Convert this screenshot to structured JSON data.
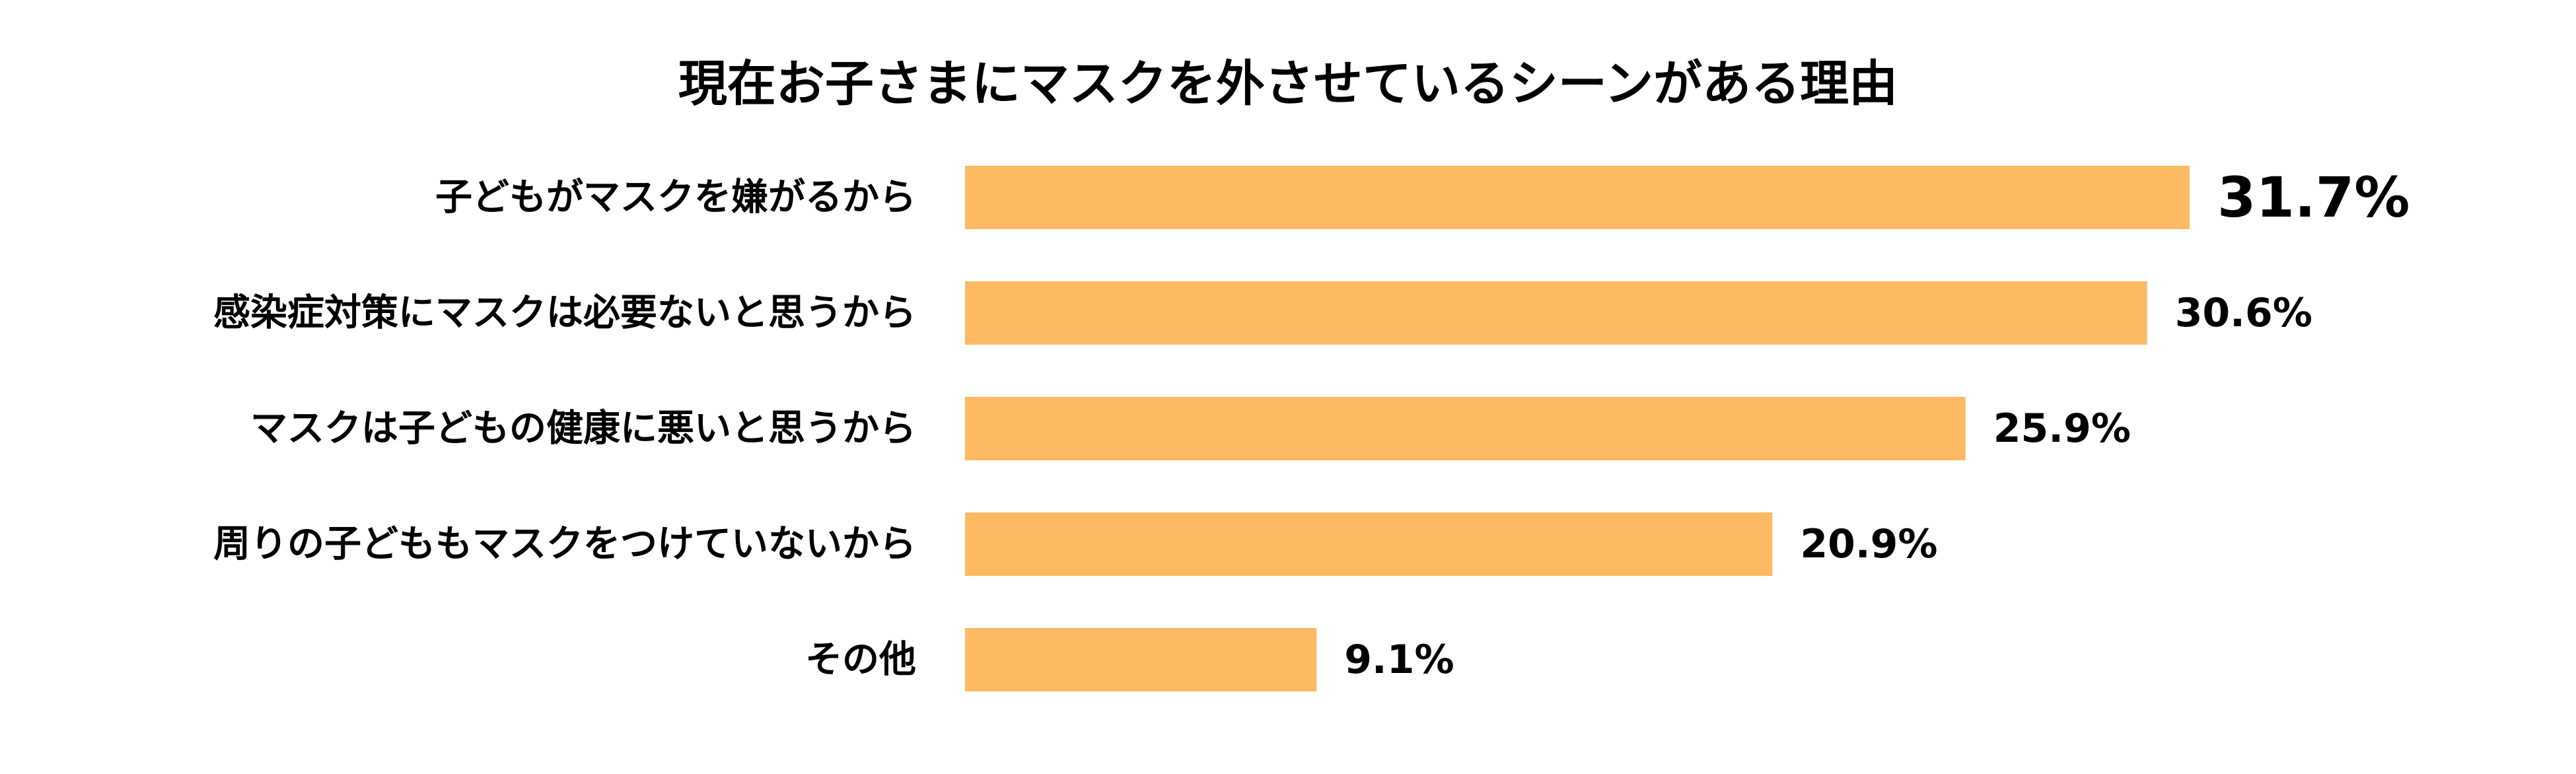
{
  "chart_data": {
    "type": "bar",
    "orientation": "horizontal",
    "title": "現在お子さまにマスクを外させているシーンがある理由",
    "categories": [
      "子どもがマスクを嫌がるから",
      "感染症対策にマスクは必要ないと思うから",
      "マスクは子どもの健康に悪いと思うから",
      "周りの子どももマスクをつけていないから",
      "その他"
    ],
    "values": [
      31.7,
      30.6,
      25.9,
      20.9,
      9.1
    ],
    "value_labels": [
      "31.7%",
      "30.6%",
      "25.9%",
      "20.9%",
      "9.1%"
    ],
    "unit": "%",
    "xlim": [
      0,
      31.7
    ],
    "grid": false,
    "legend": "none",
    "colors": {
      "bar": "#FDBA63",
      "text": "#000000",
      "background": "#FFFFFF"
    }
  }
}
